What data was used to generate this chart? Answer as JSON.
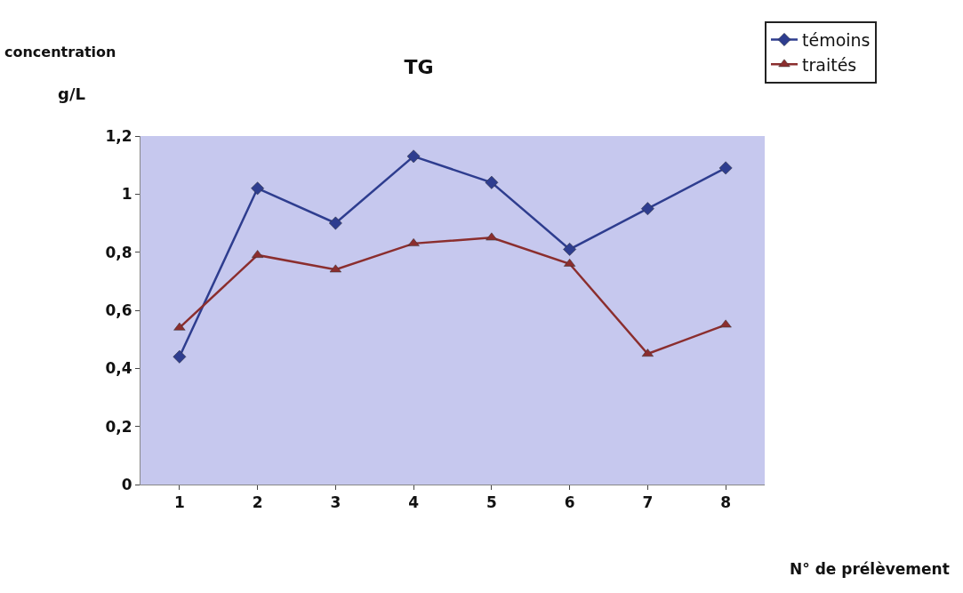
{
  "chart_data": {
    "type": "line",
    "title": "TG",
    "ylabel": "concentration\ng/L",
    "xlabel": "N° de prélèvement",
    "categories": [
      "1",
      "2",
      "3",
      "4",
      "5",
      "6",
      "7",
      "8"
    ],
    "series": [
      {
        "name": "témoins",
        "color": "#2e3d8f",
        "marker": "diamond",
        "values": [
          0.44,
          1.02,
          0.9,
          1.13,
          1.04,
          0.81,
          0.95,
          1.09
        ]
      },
      {
        "name": "traités",
        "color": "#8b2e2e",
        "marker": "triangle",
        "values": [
          0.54,
          0.79,
          0.74,
          0.83,
          0.85,
          0.76,
          0.45,
          0.55
        ]
      }
    ],
    "ylim": [
      0,
      1.2
    ],
    "yticks": [
      0,
      {
        "value": 0.2,
        "label": "0,2"
      },
      {
        "value": 0.4,
        "label": "0,4"
      },
      {
        "value": 0.6,
        "label": "0,6"
      },
      {
        "value": 0.8,
        "label": "0,8"
      },
      1,
      {
        "value": 1.2,
        "label": "1,2"
      }
    ],
    "grid": false,
    "legend": "top right",
    "line_style": "solid"
  }
}
